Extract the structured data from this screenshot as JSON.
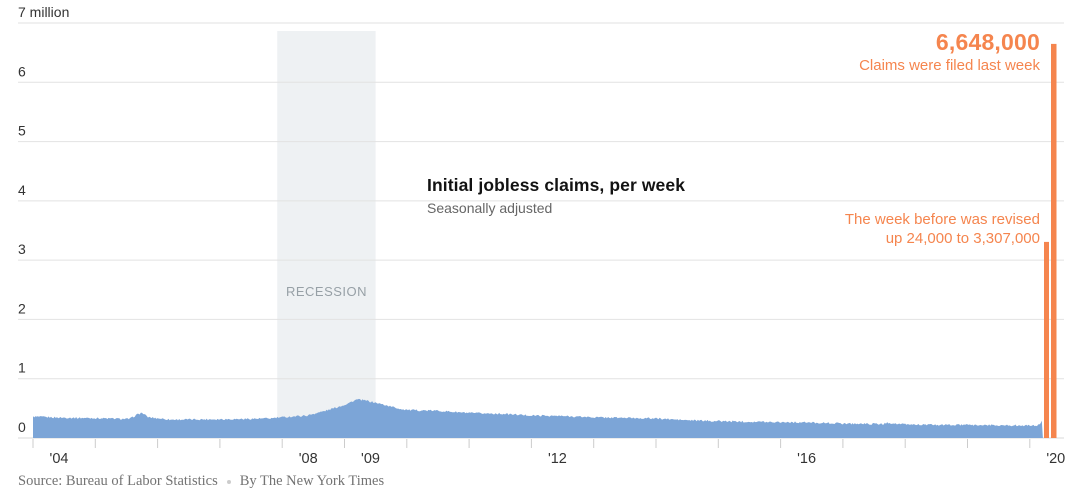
{
  "chart_data": {
    "type": "area",
    "title": "Initial jobless claims, per week",
    "subtitle": "Seasonally adjusted",
    "units": "millions of claims per week",
    "x_domain_years": [
      2004,
      2020.25
    ],
    "ylim": [
      0,
      7
    ],
    "grid": "horizontal-on",
    "legend_position": "none",
    "y_ticks": [
      {
        "value": 7,
        "label": "7 million"
      },
      {
        "value": 6,
        "label": "6"
      },
      {
        "value": 5,
        "label": "5"
      },
      {
        "value": 4,
        "label": "4"
      },
      {
        "value": 3,
        "label": "3"
      },
      {
        "value": 2,
        "label": "2"
      },
      {
        "value": 1,
        "label": "1"
      },
      {
        "value": 0,
        "label": "0"
      }
    ],
    "x_ticks": [
      {
        "year": 2004,
        "label": "'04"
      },
      {
        "year": 2005,
        "label": ""
      },
      {
        "year": 2006,
        "label": ""
      },
      {
        "year": 2007,
        "label": ""
      },
      {
        "year": 2008,
        "label": "'08"
      },
      {
        "year": 2009,
        "label": "'09"
      },
      {
        "year": 2010,
        "label": ""
      },
      {
        "year": 2011,
        "label": ""
      },
      {
        "year": 2012,
        "label": "'12"
      },
      {
        "year": 2013,
        "label": ""
      },
      {
        "year": 2014,
        "label": ""
      },
      {
        "year": 2015,
        "label": ""
      },
      {
        "year": 2016,
        "label": "'16"
      },
      {
        "year": 2017,
        "label": ""
      },
      {
        "year": 2018,
        "label": ""
      },
      {
        "year": 2019,
        "label": ""
      },
      {
        "year": 2020,
        "label": "'20"
      }
    ],
    "recession": {
      "label": "RECESSION",
      "start_year": 2007.92,
      "end_year": 2009.5
    },
    "series": {
      "name": "initial-jobless-claims-seasonally-adjusted",
      "control_points_year": [
        2004.0,
        2004.4,
        2005.0,
        2005.55,
        2005.68,
        2005.75,
        2005.85,
        2006.2,
        2006.8,
        2007.3,
        2007.8,
        2008.0,
        2008.4,
        2008.7,
        2009.0,
        2009.2,
        2009.35,
        2009.6,
        2009.9,
        2010.05,
        2010.5,
        2011.0,
        2011.5,
        2012.0,
        2012.5,
        2013.0,
        2013.5,
        2014.0,
        2014.5,
        2015.0,
        2015.5,
        2016.0,
        2016.5,
        2017.0,
        2017.65,
        2017.72,
        2017.85,
        2018.0,
        2018.5,
        2019.0,
        2019.5,
        2020.0,
        2020.13,
        2020.19
      ],
      "control_points_millions": [
        0.36,
        0.345,
        0.335,
        0.32,
        0.4,
        0.425,
        0.35,
        0.31,
        0.315,
        0.32,
        0.33,
        0.35,
        0.38,
        0.46,
        0.56,
        0.65,
        0.63,
        0.57,
        0.49,
        0.47,
        0.46,
        0.42,
        0.41,
        0.38,
        0.37,
        0.35,
        0.34,
        0.33,
        0.3,
        0.285,
        0.275,
        0.27,
        0.26,
        0.245,
        0.235,
        0.26,
        0.24,
        0.23,
        0.22,
        0.22,
        0.215,
        0.21,
        0.21,
        0.282
      ]
    },
    "highlight_bars": [
      {
        "name": "week-before-bar",
        "value_millions": 3.307,
        "display": "3,307,000"
      },
      {
        "name": "last-week-bar",
        "value_millions": 6.648,
        "display": "6,648,000"
      }
    ]
  },
  "annotations": {
    "latest_value": "6,648,000",
    "latest_caption": "Claims were filed last week",
    "revision_line1": "The week before was revised",
    "revision_line2": "up 24,000 to 3,307,000"
  },
  "footer": {
    "source": "Source: Bureau of Labor Statistics",
    "byline": "By The New York Times",
    "separator_icon": "dot"
  },
  "colors": {
    "series_blue": "#7CA5D7",
    "highlight_orange": "#F5854E",
    "recession_fill": "#EEF1F3",
    "gridline": "#E2E2E2",
    "zero_line": "#D8D8D8",
    "tick": "#CCCCCC",
    "axis_text": "#333333",
    "recession_text": "#97A0A6",
    "title_text": "#121212",
    "subtitle_text": "#666666",
    "source_text": "#737373"
  }
}
